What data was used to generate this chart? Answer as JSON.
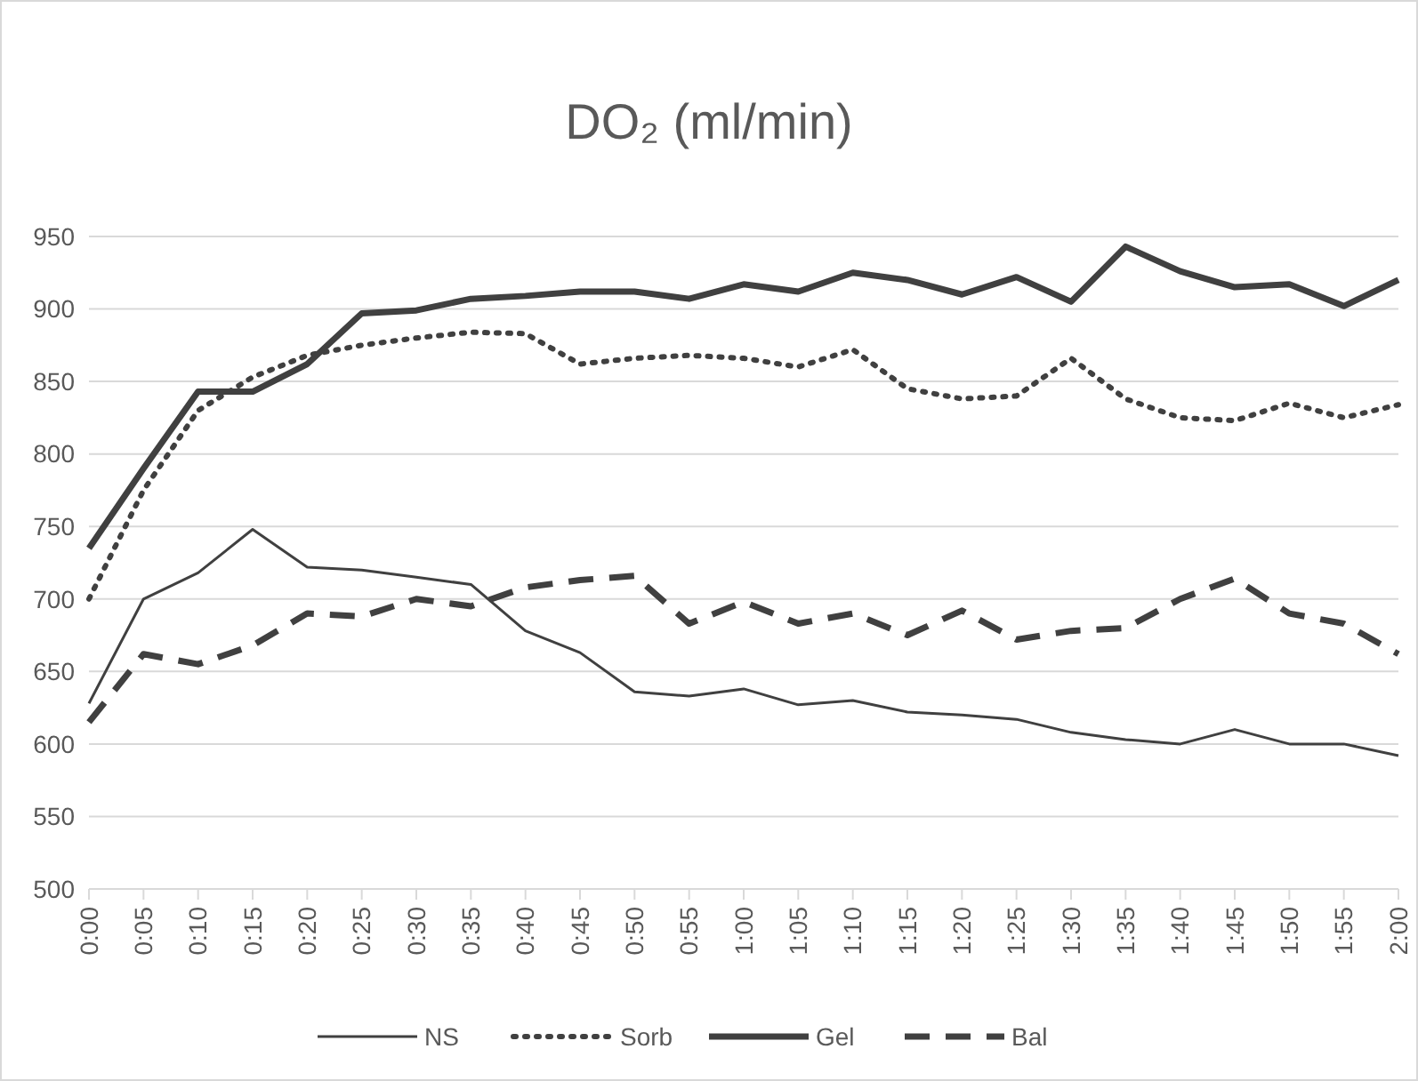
{
  "chart_data": {
    "type": "line",
    "title": "DO₂ (ml/min)",
    "categories": [
      "0:00",
      "0:05",
      "0:10",
      "0:15",
      "0:20",
      "0:25",
      "0:30",
      "0:35",
      "0:40",
      "0:45",
      "0:50",
      "0:55",
      "1:00",
      "1:05",
      "1:10",
      "1:15",
      "1:20",
      "1:25",
      "1:30",
      "1:35",
      "1:40",
      "1:45",
      "1:50",
      "1:55",
      "2:00"
    ],
    "series": [
      {
        "name": "NS",
        "color": "#404040",
        "line_style": "solid",
        "values": [
          628,
          700,
          718,
          748,
          722,
          720,
          715,
          710,
          678,
          663,
          636,
          633,
          638,
          627,
          630,
          622,
          620,
          617,
          608,
          603,
          600,
          610,
          600,
          600,
          592
        ]
      },
      {
        "name": "Sorb",
        "color": "#404040",
        "line_style": "dotted",
        "values": [
          700,
          775,
          830,
          853,
          868,
          875,
          880,
          884,
          883,
          862,
          866,
          868,
          866,
          860,
          872,
          845,
          838,
          840,
          866,
          838,
          825,
          823,
          835,
          825,
          834
        ]
      },
      {
        "name": "Gel",
        "color": "#404040",
        "line_style": "solid",
        "values": [
          735,
          790,
          843,
          843,
          862,
          897,
          899,
          907,
          909,
          912,
          912,
          907,
          917,
          912,
          925,
          920,
          910,
          922,
          905,
          943,
          926,
          915,
          917,
          902,
          920
        ]
      },
      {
        "name": "Bal",
        "color": "#404040",
        "line_style": "dashed",
        "values": [
          615,
          662,
          655,
          668,
          690,
          688,
          700,
          695,
          708,
          713,
          716,
          683,
          698,
          683,
          690,
          675,
          692,
          672,
          678,
          680,
          700,
          714,
          690,
          683,
          662
        ]
      }
    ],
    "ylim": [
      500,
      950
    ],
    "yticks": [
      500,
      550,
      600,
      650,
      700,
      750,
      800,
      850,
      900,
      950
    ],
    "grid": "y",
    "legend": "bottom"
  }
}
